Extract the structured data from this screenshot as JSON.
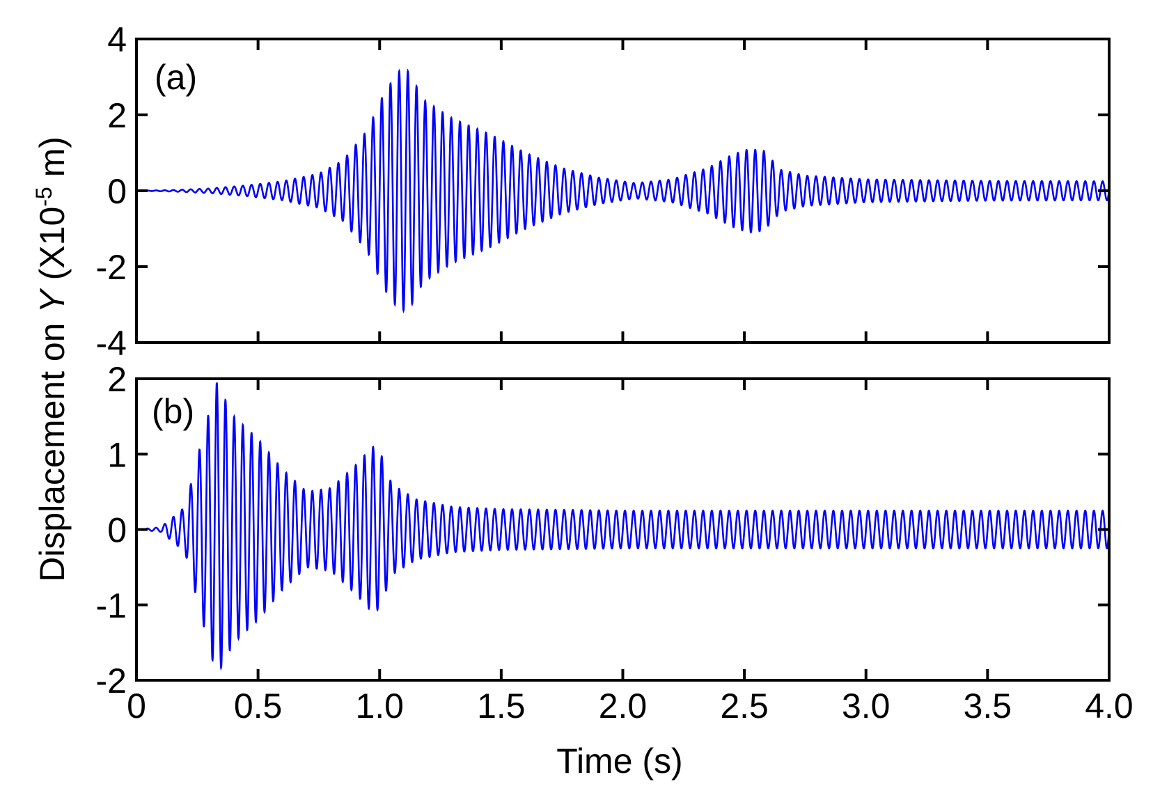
{
  "figure": {
    "ylabel_prefix": "Displacement on ",
    "ylabel_var": "Y",
    "ylabel_unit_open": " (X10",
    "ylabel_exponent": "-5",
    "ylabel_unit_close": " m)",
    "xlabel": "Time (s)"
  },
  "colors": {
    "series": "#0000ff",
    "axes": "#000000"
  },
  "chart_data": [
    {
      "type": "line",
      "panel_label": "(a)",
      "xlim": [
        0,
        4.0
      ],
      "ylim": [
        -4,
        4
      ],
      "yticks": [
        -4,
        -2,
        0,
        2,
        4
      ],
      "ytick_labels": [
        "-4",
        "-2",
        "0",
        "2",
        "4"
      ],
      "xtick_labels": [],
      "grid": false,
      "legend": false,
      "series": [
        {
          "color": "#0000ff",
          "envelope": {
            "t": [
              0.0,
              0.15,
              0.3,
              0.45,
              0.6,
              0.75,
              0.85,
              0.95,
              1.02,
              1.08,
              1.12,
              1.18,
              1.3,
              1.45,
              1.6,
              1.75,
              1.9,
              2.05,
              2.2,
              2.35,
              2.45,
              2.52,
              2.58,
              2.65,
              2.75,
              3.0,
              3.5,
              4.0
            ],
            "amplitude": [
              0.0,
              0.02,
              0.06,
              0.14,
              0.25,
              0.45,
              0.8,
              1.6,
              2.6,
              3.15,
              3.15,
              2.4,
              1.9,
              1.5,
              1.0,
              0.6,
              0.35,
              0.2,
              0.3,
              0.6,
              0.95,
              1.1,
              1.05,
              0.55,
              0.4,
              0.3,
              0.26,
              0.25
            ]
          }
        }
      ]
    },
    {
      "type": "line",
      "panel_label": "(b)",
      "xlim": [
        0,
        4.0
      ],
      "ylim": [
        -2,
        2
      ],
      "yticks": [
        -2,
        -1,
        0,
        1,
        2
      ],
      "ytick_labels": [
        "-2",
        "-1",
        "0",
        "1",
        "2"
      ],
      "xticks": [
        0,
        0.5,
        1.0,
        1.5,
        2.0,
        2.5,
        3.0,
        3.5,
        4.0
      ],
      "xtick_labels": [
        "0",
        "0.5",
        "1.0",
        "1.5",
        "2.0",
        "2.5",
        "3.0",
        "3.5",
        "4.0"
      ],
      "grid": false,
      "legend": false,
      "series": [
        {
          "color": "#0000ff",
          "envelope": {
            "t": [
              0.0,
              0.1,
              0.2,
              0.27,
              0.33,
              0.4,
              0.5,
              0.6,
              0.7,
              0.8,
              0.9,
              0.97,
              1.0,
              1.05,
              1.15,
              1.3,
              1.5,
              1.8,
              2.0,
              2.5,
              3.0,
              4.0
            ],
            "amplitude": [
              0.0,
              0.03,
              0.3,
              1.2,
              1.95,
              1.5,
              1.2,
              0.8,
              0.5,
              0.55,
              0.85,
              1.1,
              1.05,
              0.6,
              0.4,
              0.3,
              0.27,
              0.26,
              0.25,
              0.25,
              0.25,
              0.25
            ]
          }
        }
      ]
    }
  ]
}
